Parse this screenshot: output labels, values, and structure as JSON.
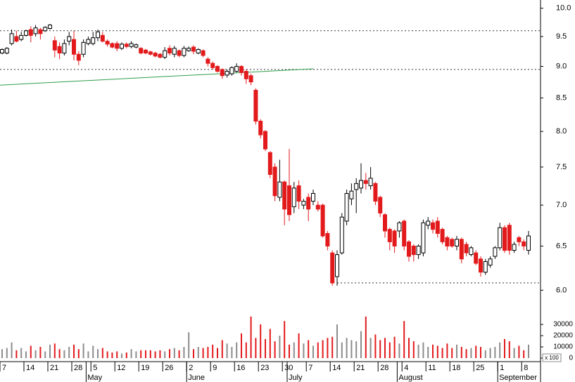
{
  "chart_data": {
    "type": "candlestick",
    "categories": [
      "7",
      null,
      null,
      null,
      null,
      "14",
      null,
      null,
      null,
      null,
      "21",
      null,
      null,
      null,
      null,
      "28",
      null,
      null,
      null,
      "5",
      null,
      null,
      null,
      null,
      "12",
      null,
      null,
      null,
      null,
      "19",
      null,
      null,
      null,
      null,
      "26",
      null,
      null,
      null,
      null,
      "2",
      null,
      null,
      null,
      null,
      "9",
      null,
      null,
      null,
      null,
      "16",
      null,
      null,
      null,
      null,
      "23",
      null,
      null,
      null,
      null,
      "30",
      null,
      null,
      null,
      null,
      "7",
      null,
      null,
      null,
      null,
      "14",
      null,
      null,
      null,
      null,
      "21",
      null,
      null,
      null,
      null,
      "28",
      null,
      null,
      null,
      null,
      "4",
      null,
      null,
      null,
      null,
      "11",
      null,
      null,
      null,
      null,
      "18",
      null,
      null,
      null,
      null,
      "25",
      null,
      null,
      null,
      null,
      "1",
      null,
      null,
      null,
      null,
      "8",
      null
    ],
    "months": [
      {
        "label": "May",
        "index": 18
      },
      {
        "label": "June",
        "index": 39
      },
      {
        "label": "July",
        "index": 60
      },
      {
        "label": "August",
        "index": 83
      },
      {
        "label": "September",
        "index": 104
      }
    ],
    "open": [
      9.22,
      9.22,
      9.38,
      9.5,
      9.45,
      9.52,
      9.62,
      9.55,
      9.62,
      9.6,
      9.64,
      9.43,
      9.33,
      9.22,
      9.42,
      9.45,
      9.2,
      9.2,
      9.38,
      9.38,
      9.48,
      9.52,
      9.42,
      9.38,
      9.38,
      9.3,
      9.37,
      9.33,
      9.32,
      9.3,
      9.27,
      9.24,
      9.22,
      9.2,
      9.15,
      9.3,
      9.2,
      9.26,
      9.18,
      9.26,
      9.32,
      9.22,
      9.26,
      9.12,
      9.05,
      9.0,
      8.95,
      8.86,
      8.88,
      8.92,
      9.0,
      8.92,
      8.85,
      8.62,
      8.15,
      8.0,
      7.7,
      7.5,
      7.1,
      7.3,
      7.25,
      6.98,
      7.25,
      7.0,
      7.1,
      7.05,
      7.0,
      7.0,
      6.65,
      6.42,
      6.15,
      6.42,
      6.8,
      7.08,
      7.2,
      7.22,
      7.32,
      7.25,
      7.28,
      7.1,
      6.88,
      6.7,
      6.68,
      6.68,
      6.8,
      6.55,
      6.5,
      6.4,
      6.42,
      6.75,
      6.78,
      6.8,
      6.7,
      6.6,
      6.58,
      6.5,
      6.58,
      6.52,
      6.4,
      6.42,
      6.35,
      6.2,
      6.28,
      6.38,
      6.48,
      6.72,
      6.75,
      6.45,
      6.6,
      6.55,
      6.45
    ],
    "high": [
      9.3,
      9.32,
      9.62,
      9.6,
      9.58,
      9.62,
      9.68,
      9.7,
      9.65,
      9.68,
      9.72,
      9.5,
      9.4,
      9.45,
      9.58,
      9.6,
      9.25,
      9.45,
      9.5,
      9.58,
      9.62,
      9.58,
      9.45,
      9.4,
      9.42,
      9.4,
      9.4,
      9.42,
      9.38,
      9.32,
      9.29,
      9.26,
      9.24,
      9.22,
      9.32,
      9.35,
      9.34,
      9.28,
      9.34,
      9.33,
      9.35,
      9.3,
      9.28,
      9.15,
      9.08,
      9.02,
      8.97,
      8.95,
      9.0,
      9.05,
      9.02,
      8.95,
      8.88,
      8.65,
      8.18,
      8.02,
      7.72,
      7.55,
      7.6,
      7.32,
      7.75,
      7.3,
      7.32,
      7.08,
      7.15,
      7.2,
      7.05,
      7.02,
      6.68,
      6.45,
      6.45,
      6.9,
      7.2,
      7.28,
      7.35,
      7.55,
      7.42,
      7.5,
      7.3,
      7.12,
      6.9,
      6.72,
      6.7,
      6.8,
      6.82,
      6.57,
      6.52,
      6.52,
      6.82,
      6.85,
      6.82,
      6.85,
      6.72,
      6.62,
      6.6,
      6.62,
      6.6,
      6.55,
      6.5,
      6.45,
      6.38,
      6.35,
      6.38,
      6.5,
      6.78,
      6.75,
      6.78,
      6.55,
      6.62,
      6.58,
      6.68
    ],
    "low": [
      9.2,
      9.2,
      9.35,
      9.4,
      9.42,
      9.5,
      9.4,
      9.5,
      9.45,
      9.58,
      9.62,
      9.15,
      9.12,
      9.18,
      9.35,
      9.1,
      9.02,
      9.15,
      9.35,
      9.35,
      9.42,
      9.4,
      9.33,
      9.3,
      9.25,
      9.27,
      9.3,
      9.3,
      9.3,
      9.2,
      9.2,
      9.18,
      9.15,
      9.13,
      9.12,
      9.18,
      9.15,
      9.15,
      9.15,
      9.24,
      9.2,
      9.2,
      9.15,
      9.0,
      8.95,
      8.9,
      8.8,
      8.82,
      8.85,
      8.9,
      8.85,
      8.72,
      8.7,
      8.1,
      7.9,
      7.72,
      7.35,
      7.05,
      7.05,
      6.75,
      6.8,
      6.9,
      6.95,
      6.95,
      6.8,
      7.0,
      6.92,
      6.6,
      6.45,
      6.05,
      6.05,
      6.4,
      6.75,
      7.0,
      6.9,
      7.15,
      7.2,
      7.2,
      7.0,
      6.85,
      6.6,
      6.45,
      6.42,
      6.6,
      6.45,
      6.32,
      6.32,
      6.35,
      6.38,
      6.7,
      6.65,
      6.6,
      6.52,
      6.45,
      6.48,
      6.45,
      6.3,
      6.38,
      6.38,
      6.28,
      6.15,
      6.17,
      6.25,
      6.35,
      6.45,
      6.42,
      6.4,
      6.42,
      6.5,
      6.45,
      6.4
    ],
    "close": [
      9.28,
      9.3,
      9.55,
      9.42,
      9.52,
      9.6,
      9.52,
      9.65,
      9.55,
      9.66,
      9.7,
      9.27,
      9.22,
      9.38,
      9.5,
      9.2,
      9.1,
      9.4,
      9.45,
      9.48,
      9.58,
      9.42,
      9.37,
      9.32,
      9.3,
      9.37,
      9.33,
      9.38,
      9.36,
      9.22,
      9.22,
      9.2,
      9.17,
      9.15,
      9.26,
      9.22,
      9.3,
      9.18,
      9.3,
      9.3,
      9.25,
      9.28,
      9.18,
      9.05,
      8.98,
      8.92,
      8.85,
      8.92,
      8.98,
      9.0,
      8.9,
      8.8,
      8.75,
      8.15,
      7.95,
      7.75,
      7.4,
      7.12,
      7.3,
      6.95,
      6.88,
      7.22,
      7.05,
      7.05,
      6.95,
      7.15,
      6.95,
      6.62,
      6.5,
      6.08,
      6.4,
      6.85,
      7.15,
      7.18,
      7.28,
      7.32,
      7.28,
      7.35,
      7.05,
      6.9,
      6.68,
      6.55,
      6.5,
      6.78,
      6.5,
      6.38,
      6.4,
      6.5,
      6.78,
      6.8,
      6.7,
      6.65,
      6.55,
      6.5,
      6.5,
      6.58,
      6.35,
      6.42,
      6.48,
      6.3,
      6.2,
      6.32,
      6.35,
      6.48,
      6.72,
      6.45,
      6.45,
      6.52,
      6.55,
      6.5,
      6.62
    ],
    "volume": [
      8000,
      9000,
      14000,
      7000,
      9000,
      6000,
      11000,
      7000,
      10000,
      6000,
      12000,
      13000,
      8000,
      7000,
      10000,
      12000,
      8000,
      13000,
      6000,
      11000,
      8000,
      9000,
      6000,
      5000,
      6000,
      4000,
      5000,
      8000,
      6000,
      7000,
      7000,
      7000,
      6000,
      7000,
      6000,
      8000,
      9000,
      7000,
      10000,
      23000,
      8000,
      10000,
      9000,
      10000,
      12000,
      9000,
      16000,
      13000,
      10000,
      14000,
      22000,
      14000,
      37000,
      18000,
      30000,
      17000,
      26000,
      15000,
      20000,
      33000,
      12000,
      14000,
      22000,
      13000,
      16000,
      11000,
      14000,
      16000,
      18000,
      19000,
      30000,
      14000,
      18000,
      16000,
      15000,
      24000,
      37000,
      18000,
      21000,
      16000,
      18000,
      14000,
      19000,
      13000,
      33000,
      18000,
      15000,
      12000,
      14000,
      10000,
      12000,
      11000,
      9000,
      13000,
      9000,
      12000,
      10000,
      8000,
      9000,
      11000,
      10000,
      7000,
      9000,
      10000,
      14000,
      17000,
      15000,
      9000,
      11000,
      7000,
      12000
    ],
    "ylim": [
      5.8,
      10.15
    ],
    "log_scale": true,
    "yticks": [
      {
        "value": 10,
        "label": "10.0"
      },
      9.5,
      {
        "value": 9,
        "label": "9.0"
      },
      8.5,
      {
        "value": 8,
        "label": "8.0"
      },
      7.5,
      {
        "value": 7,
        "label": "7.0"
      },
      6.5,
      {
        "value": 6,
        "label": "6.0"
      }
    ],
    "volume_lim": [
      0,
      40000
    ],
    "volume_ticks": [
      30000,
      20000,
      10000,
      0
    ],
    "volume_unit": "x 100",
    "hlines": [
      9.6,
      8.95
    ],
    "support": {
      "value": 6.08,
      "from": 70
    },
    "trendline": {
      "x": [
        0,
        65
      ],
      "y": [
        8.7,
        8.96
      ],
      "color": "#2e9e4a"
    },
    "up_color": "#ffffff",
    "down_color": "#e31a1c",
    "volume_up_color": "#8c8c8c"
  }
}
